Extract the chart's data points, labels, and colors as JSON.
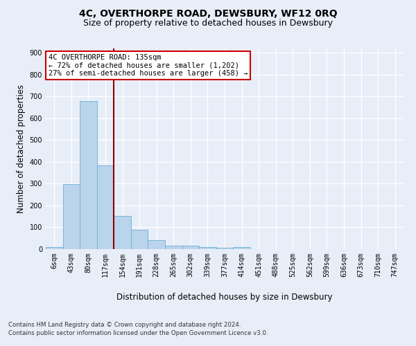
{
  "title": "4C, OVERTHORPE ROAD, DEWSBURY, WF12 0RQ",
  "subtitle": "Size of property relative to detached houses in Dewsbury",
  "xlabel": "Distribution of detached houses by size in Dewsbury",
  "ylabel": "Number of detached properties",
  "bins": [
    "6sqm",
    "43sqm",
    "80sqm",
    "117sqm",
    "154sqm",
    "191sqm",
    "228sqm",
    "265sqm",
    "302sqm",
    "339sqm",
    "377sqm",
    "414sqm",
    "451sqm",
    "488sqm",
    "525sqm",
    "562sqm",
    "599sqm",
    "636sqm",
    "673sqm",
    "710sqm",
    "747sqm"
  ],
  "values": [
    10,
    298,
    678,
    383,
    152,
    90,
    42,
    17,
    16,
    10,
    5,
    8,
    0,
    0,
    0,
    0,
    0,
    0,
    0,
    0,
    0
  ],
  "bar_color": "#bad4eb",
  "bar_edge_color": "#6aaed6",
  "vline_color": "#8b0000",
  "annotation_text": "4C OVERTHORPE ROAD: 135sqm\n← 72% of detached houses are smaller (1,202)\n27% of semi-detached houses are larger (458) →",
  "annotation_box_color": "#ffffff",
  "annotation_box_edge": "#cc0000",
  "ylim": [
    0,
    920
  ],
  "yticks": [
    0,
    100,
    200,
    300,
    400,
    500,
    600,
    700,
    800,
    900
  ],
  "bg_color": "#e8eef8",
  "plot_bg_color": "#e8eef8",
  "footer_line1": "Contains HM Land Registry data © Crown copyright and database right 2024.",
  "footer_line2": "Contains public sector information licensed under the Open Government Licence v3.0.",
  "title_fontsize": 10,
  "subtitle_fontsize": 9,
  "axis_label_fontsize": 8.5,
  "tick_fontsize": 7
}
